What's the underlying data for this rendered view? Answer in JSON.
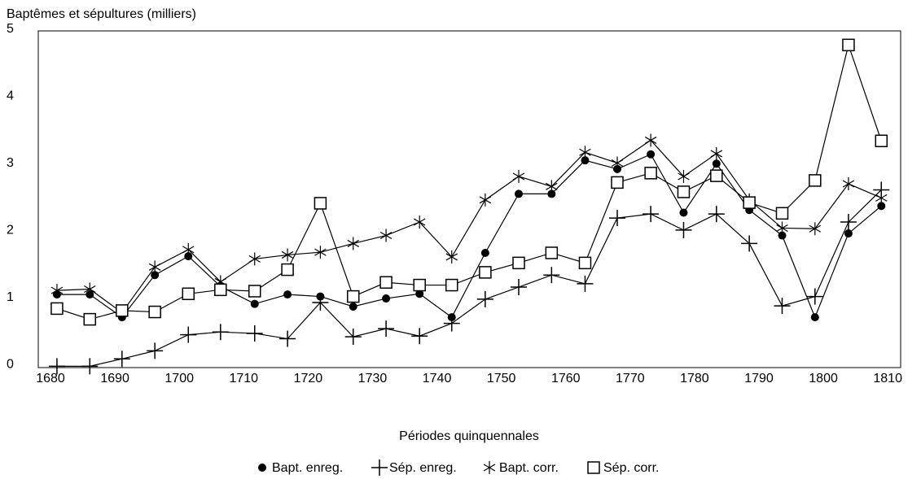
{
  "chart_data": {
    "type": "line",
    "title": "Baptêmes et sépultures (milliers)",
    "x_label": "Périodes quinquennales",
    "x": [
      1681.0,
      1686.1,
      1691.1,
      1696.2,
      1701.4,
      1706.4,
      1711.7,
      1716.8,
      1721.9,
      1727.0,
      1732.1,
      1737.3,
      1742.3,
      1747.5,
      1752.7,
      1757.8,
      1763.0,
      1768.0,
      1773.2,
      1778.3,
      1783.4,
      1788.5,
      1793.6,
      1798.7,
      1803.9,
      1809.0
    ],
    "series": [
      {
        "name": "Bapt. enreg.",
        "color": "#000000",
        "marker": "dot",
        "values": [
          1.07,
          1.07,
          0.73,
          1.36,
          1.64,
          1.19,
          0.93,
          1.07,
          1.04,
          0.89,
          1.01,
          1.08,
          0.73,
          1.69,
          2.57,
          2.57,
          3.07,
          2.94,
          3.16,
          2.29,
          3.02,
          2.33,
          1.95,
          0.73,
          1.98,
          2.39
        ]
      },
      {
        "name": "Sép. enreg.",
        "color": "#000000",
        "marker": "plus",
        "values": [
          0,
          0,
          0.11,
          0.23,
          0.47,
          0.51,
          0.49,
          0.41,
          0.95,
          0.44,
          0.56,
          0.45,
          0.64,
          1.0,
          1.18,
          1.36,
          1.23,
          2.21,
          2.27,
          2.03,
          2.27,
          1.83,
          0.9,
          1.04,
          2.15,
          2.63
        ]
      },
      {
        "name": "Bapt. corr.",
        "color": "#000000",
        "marker": "star",
        "values": [
          1.13,
          1.15,
          0.8,
          1.48,
          1.74,
          1.26,
          1.6,
          1.66,
          1.7,
          1.83,
          1.95,
          2.15,
          1.63,
          2.48,
          2.83,
          2.68,
          3.19,
          3.03,
          3.37,
          2.83,
          3.17,
          2.48,
          2.06,
          2.05,
          2.72,
          2.51
        ]
      },
      {
        "name": "Sép. corr.",
        "color": "#000000",
        "marker": "square",
        "values": [
          0.86,
          0.7,
          0.83,
          0.81,
          1.08,
          1.14,
          1.12,
          1.44,
          2.43,
          1.04,
          1.25,
          1.21,
          1.21,
          1.4,
          1.54,
          1.69,
          1.54,
          2.74,
          2.88,
          2.6,
          2.84,
          2.44,
          2.28,
          2.77,
          4.79,
          3.36
        ]
      }
    ],
    "xlim": [
      1678.1,
      1812
    ],
    "ylim": [
      -0.02,
      5
    ],
    "xticks": [
      1680,
      1690,
      1700,
      1710,
      1720,
      1730,
      1740,
      1750,
      1760,
      1770,
      1780,
      1790,
      1800,
      1810
    ],
    "yticks": [
      0,
      1,
      2,
      3,
      4,
      5
    ],
    "grid": false,
    "legend": "bottom"
  }
}
